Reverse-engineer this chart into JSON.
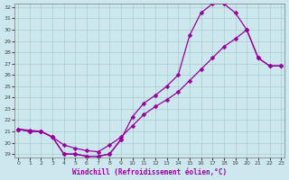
{
  "xlabel": "Windchill (Refroidissement éolien,°C)",
  "xlim": [
    0,
    23
  ],
  "ylim": [
    19,
    32
  ],
  "xticks": [
    0,
    1,
    2,
    3,
    4,
    5,
    6,
    7,
    8,
    9,
    10,
    11,
    12,
    13,
    14,
    15,
    16,
    17,
    18,
    19,
    20,
    21,
    22,
    23
  ],
  "yticks": [
    19,
    20,
    21,
    22,
    23,
    24,
    25,
    26,
    27,
    28,
    29,
    30,
    31,
    32
  ],
  "bg_color": "#cce8ee",
  "grid_color": "#aacccc",
  "line_color": "#990099",
  "line1_x": [
    0,
    1,
    2,
    3,
    4,
    5,
    6,
    7,
    8,
    9
  ],
  "line1_y": [
    21.2,
    21.0,
    21.0,
    20.5,
    19.0,
    19.0,
    18.8,
    18.8,
    19.0,
    20.3
  ],
  "line2_x": [
    0,
    1,
    2,
    3,
    4,
    5,
    6,
    7,
    8,
    9,
    10,
    11,
    12,
    13,
    14,
    15,
    16,
    17,
    18,
    19,
    20,
    21,
    22,
    23
  ],
  "line2_y": [
    21.2,
    21.0,
    21.0,
    20.5,
    19.0,
    19.0,
    18.8,
    18.8,
    19.0,
    20.3,
    22.3,
    23.5,
    24.2,
    25.0,
    26.0,
    29.5,
    31.5,
    32.3,
    32.3,
    31.5,
    30.0,
    27.5,
    26.8,
    26.8
  ],
  "line3_x": [
    0,
    1,
    2,
    3,
    4,
    5,
    6,
    7,
    8,
    9,
    10,
    11,
    12,
    13,
    14,
    15,
    16,
    17,
    18,
    19,
    20,
    21,
    22,
    23
  ],
  "line3_y": [
    21.2,
    21.1,
    21.0,
    20.5,
    19.8,
    19.5,
    19.3,
    19.2,
    19.8,
    20.5,
    21.5,
    22.5,
    23.2,
    23.8,
    24.5,
    25.5,
    26.5,
    27.5,
    28.5,
    29.2,
    30.0,
    27.5,
    26.8,
    26.8
  ]
}
